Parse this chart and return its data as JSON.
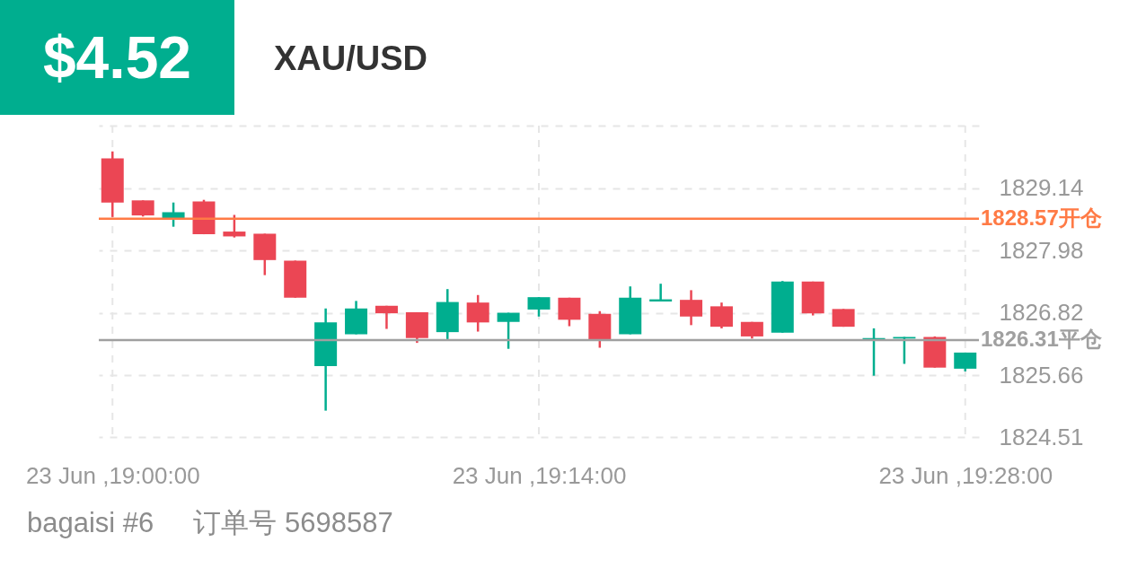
{
  "chart_data": {
    "type": "candlestick",
    "title": "XAU/USD",
    "annotations": [
      "$4.52",
      "bagaisi #6",
      "订单号 5698587"
    ],
    "categories": [
      "23 Jun ,19:00:00",
      null,
      null,
      null,
      null,
      null,
      null,
      null,
      null,
      null,
      null,
      null,
      null,
      null,
      "23 Jun ,19:14:00",
      null,
      null,
      null,
      null,
      null,
      null,
      null,
      null,
      null,
      null,
      null,
      null,
      null,
      "23 Jun ,19:28:00"
    ],
    "ohlc": [
      [
        1829.69,
        1829.82,
        1828.6,
        1828.87
      ],
      [
        1828.91,
        1828.91,
        1828.61,
        1828.63
      ],
      [
        1828.57,
        1828.87,
        1828.42,
        1828.69
      ],
      [
        1828.89,
        1828.92,
        1828.28,
        1828.28
      ],
      [
        1828.33,
        1828.64,
        1828.22,
        1828.24
      ],
      [
        1828.29,
        1828.29,
        1827.52,
        1827.8
      ],
      [
        1827.79,
        1827.79,
        1827.1,
        1827.1
      ],
      [
        1825.83,
        1826.9,
        1825.0,
        1826.64
      ],
      [
        1826.42,
        1827.04,
        1826.42,
        1826.9
      ],
      [
        1826.95,
        1826.95,
        1826.52,
        1826.81
      ],
      [
        1826.83,
        1826.83,
        1826.26,
        1826.35
      ],
      [
        1826.46,
        1827.26,
        1826.33,
        1827.02
      ],
      [
        1827.01,
        1827.15,
        1826.47,
        1826.64
      ],
      [
        1826.65,
        1826.82,
        1826.15,
        1826.82
      ],
      [
        1826.88,
        1827.11,
        1826.75,
        1827.11
      ],
      [
        1827.1,
        1827.1,
        1826.57,
        1826.69
      ],
      [
        1826.8,
        1826.85,
        1826.17,
        1826.32
      ],
      [
        1826.42,
        1827.31,
        1826.42,
        1827.1
      ],
      [
        1827.03,
        1827.36,
        1827.03,
        1827.07
      ],
      [
        1827.06,
        1827.24,
        1826.59,
        1826.75
      ],
      [
        1826.94,
        1827.01,
        1826.53,
        1826.56
      ],
      [
        1826.65,
        1826.65,
        1826.34,
        1826.38
      ],
      [
        1826.45,
        1827.41,
        1826.45,
        1827.4
      ],
      [
        1827.4,
        1827.4,
        1826.77,
        1826.81
      ],
      [
        1826.89,
        1826.89,
        1826.56,
        1826.56
      ],
      [
        1826.3,
        1826.53,
        1825.65,
        1826.35
      ],
      [
        1826.34,
        1826.37,
        1825.87,
        1826.37
      ],
      [
        1826.37,
        1826.38,
        1825.8,
        1825.8
      ],
      [
        1825.78,
        1826.08,
        1825.73,
        1826.08
      ]
    ],
    "colors": [
      "#eb4654",
      "#eb4654",
      "#00ae8f",
      "#eb4654",
      "#eb4654",
      "#eb4654",
      "#eb4654",
      "#00ae8f",
      "#00ae8f",
      "#eb4654",
      "#eb4654",
      "#00ae8f",
      "#eb4654",
      "#00ae8f",
      "#00ae8f",
      "#eb4654",
      "#eb4654",
      "#00ae8f",
      "#00ae8f",
      "#eb4654",
      "#eb4654",
      "#eb4654",
      "#00ae8f",
      "#eb4654",
      "#eb4654",
      "#00ae8f",
      "#00ae8f",
      "#eb4654",
      "#00ae8f"
    ],
    "ylim": [
      1824.51,
      1830.3
    ],
    "yticks": [
      1824.51,
      1825.66,
      1826.82,
      1827.98,
      1829.14,
      {
        "value": 1830.3,
        "label": null
      }
    ],
    "grid": true,
    "ref_lines": [
      {
        "axis": "y",
        "value": 1828.57,
        "label": "1828.57开仓",
        "color": "#ff7a45"
      },
      {
        "axis": "y",
        "value": 1826.31,
        "label": "1826.31平仓",
        "color": "#a0a0a0"
      }
    ]
  }
}
